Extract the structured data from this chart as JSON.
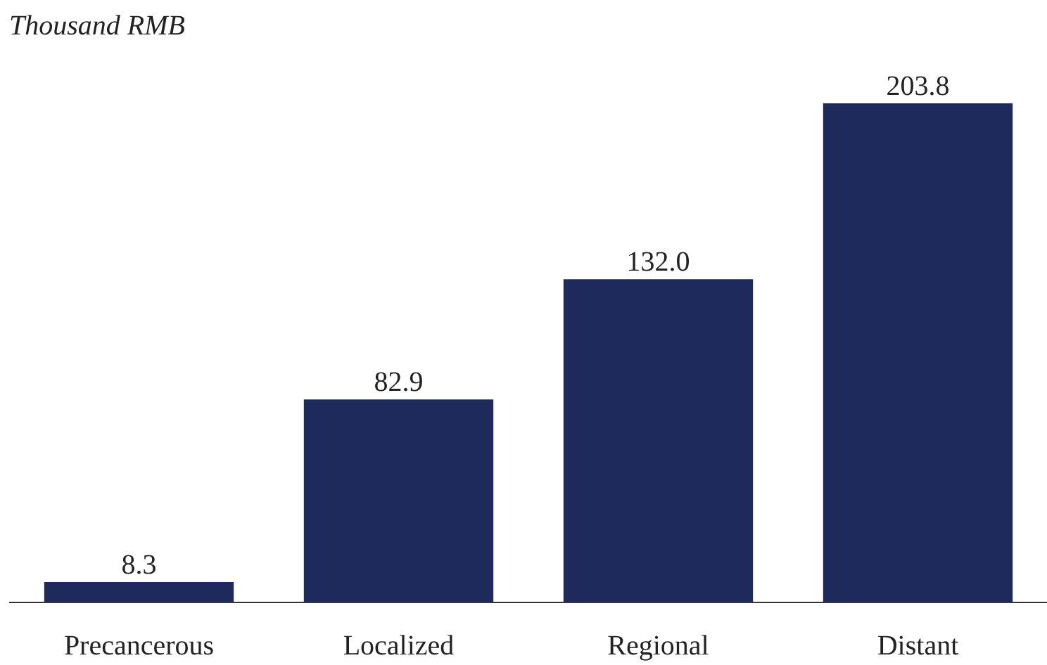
{
  "chart_data": {
    "type": "bar",
    "ylabel": "Thousand RMB",
    "categories": [
      "Precancerous",
      "Localized",
      "Regional",
      "Distant"
    ],
    "values": [
      8.3,
      82.9,
      132.0,
      203.8
    ],
    "value_labels": [
      "8.3",
      "82.9",
      "132.0",
      "203.8"
    ],
    "color": "#1f2a5c",
    "grid": false
  }
}
